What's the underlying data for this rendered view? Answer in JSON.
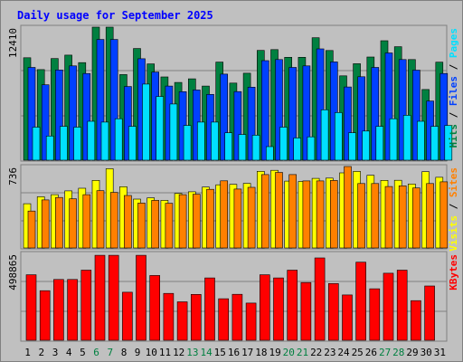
{
  "chart_data": {
    "type": "bar",
    "title": "Daily usage for September 2025",
    "categories": [
      "1",
      "2",
      "3",
      "4",
      "5",
      "6",
      "7",
      "8",
      "9",
      "10",
      "11",
      "12",
      "13",
      "14",
      "15",
      "16",
      "17",
      "18",
      "19",
      "20",
      "21",
      "22",
      "23",
      "24",
      "25",
      "26",
      "27",
      "28",
      "29",
      "30",
      "31"
    ],
    "weekend_days": [
      "6",
      "7",
      "13",
      "14",
      "20",
      "21",
      "27",
      "28"
    ],
    "colors": {
      "hits": "#008040",
      "files": "#0040ff",
      "pages": "#00e0ff",
      "visits": "#ffff00",
      "sites": "#ff8000",
      "kbytes": "#ff0000",
      "weekday_label": "#000000",
      "weekend_label": "#008040",
      "title": "#0000ff",
      "background": "#c0c0c0"
    },
    "panels": [
      {
        "name": "hits-files-pages",
        "max_label": "12410",
        "ymax": 12410,
        "legend": [
          {
            "text": "Hits",
            "color": "#008040"
          },
          {
            "text": " / ",
            "color": "#000000"
          },
          {
            "text": "Files",
            "color": "#0040ff"
          },
          {
            "text": " / ",
            "color": "#000000"
          },
          {
            "text": "Pages",
            "color": "#00e0ff"
          }
        ],
        "series": [
          {
            "name": "Hits",
            "color": "#008040",
            "values": [
              9560,
              8450,
              9480,
              9800,
              9100,
              12410,
              12410,
              7990,
              10420,
              8980,
              7770,
              7250,
              7590,
              6910,
              9150,
              7190,
              8110,
              10240,
              10320,
              9600,
              9600,
              11420,
              10230,
              7870,
              9000,
              9620,
              11140,
              10590,
              9390,
              6590,
              9140
            ]
          },
          {
            "name": "Files",
            "color": "#0040ff",
            "values": [
              8650,
              7030,
              8420,
              8800,
              8090,
              11260,
              11260,
              6870,
              9460,
              8220,
              6910,
              6390,
              6550,
              6140,
              8030,
              6400,
              6810,
              9290,
              9390,
              8650,
              8800,
              10380,
              9170,
              6830,
              7780,
              8650,
              10000,
              9390,
              8400,
              5520,
              8090
            ]
          },
          {
            "name": "Pages",
            "color": "#00e0ff",
            "values": [
              3080,
              2250,
              3160,
              3080,
              3630,
              3550,
              3870,
              3160,
              7100,
              5940,
              5240,
              3240,
              3550,
              3550,
              2560,
              2400,
              2330,
              1270,
              3080,
              2080,
              2180,
              4700,
              4440,
              2560,
              2720,
              3160,
              3870,
              4190,
              3630,
              3160,
              3240
            ]
          }
        ]
      },
      {
        "name": "visits-sites",
        "max_label": "736",
        "ymax": 736,
        "legend": [
          {
            "text": "Visits",
            "color": "#ffff00"
          },
          {
            "text": " / ",
            "color": "#000000"
          },
          {
            "text": "Sites",
            "color": "#ff8000"
          }
        ],
        "series": [
          {
            "name": "Visits",
            "color": "#ffff00",
            "values": [
              400,
              463,
              482,
              516,
              540,
              611,
              716,
              554,
              442,
              453,
              430,
              492,
              508,
              550,
              571,
              575,
              584,
              693,
              702,
              604,
              601,
              629,
              631,
              679,
              692,
              657,
              611,
              612,
              578,
              689,
              639
            ]
          },
          {
            "name": "Sites",
            "color": "#ff8000",
            "values": [
              334,
              434,
              456,
              444,
              482,
              518,
              502,
              474,
              406,
              430,
              404,
              482,
              486,
              530,
              607,
              532,
              548,
              663,
              683,
              663,
              606,
              606,
              610,
              736,
              582,
              582,
              555,
              562,
              542,
              582,
              598
            ]
          }
        ]
      },
      {
        "name": "kbytes",
        "max_label": "498865",
        "ymax": 498865,
        "legend": [
          {
            "text": "KBytes",
            "color": "#ff0000"
          }
        ],
        "series": [
          {
            "name": "KBytes",
            "color": "#ff0000",
            "values": [
              380000,
              288000,
              353000,
              353000,
              407000,
              493000,
              493000,
              279000,
              493000,
              376000,
              272000,
              223000,
              266000,
              362000,
              241000,
              267000,
              216000,
              380000,
              362000,
              407000,
              335000,
              478000,
              329000,
              263000,
              453000,
              299000,
              389000,
              407000,
              230000,
              315000,
              0
            ]
          }
        ]
      }
    ]
  }
}
